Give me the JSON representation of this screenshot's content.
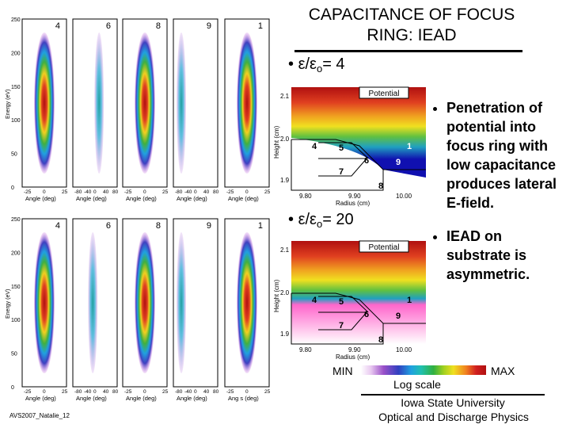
{
  "title": "CAPACITANCE OF FOCUS RING: IEAD",
  "case1": {
    "label": "ε/ε",
    "sub": "o",
    "value": "= 4"
  },
  "case2": {
    "label": "ε/ε",
    "sub": "o",
    "value": "= 20"
  },
  "bullets": [
    "Penetration of potential into focus ring with low capacitance produces lateral E-field.",
    "IEAD on substrate is asymmetric."
  ],
  "iead": {
    "ylabel": "Energy (eV)",
    "yticks": [
      "250",
      "200",
      "150",
      "100",
      "50",
      "0"
    ],
    "xlabel": "Angle (deg)",
    "xlabel_last": "Ang s (deg)",
    "row1_panels": [
      "4",
      "6",
      "8",
      "9",
      "1"
    ],
    "row2_panels": [
      "4",
      "6",
      "8",
      "9",
      "1"
    ],
    "xticks_narrow": [
      "-25",
      "0",
      "25"
    ],
    "xticks_wide": [
      "-80",
      "-40",
      "0",
      "40",
      "80"
    ]
  },
  "potential": {
    "title": "Potential",
    "ylabel": "Height (cm)",
    "xlabel": "Radius (cm)",
    "yticks": [
      "2.1",
      "2.0",
      "1.9"
    ],
    "xticks": [
      "9.80",
      "9.90",
      "10.00"
    ],
    "regions": [
      "4",
      "5",
      "6",
      "7",
      "8",
      "9",
      "1"
    ]
  },
  "legend": {
    "min": "MIN",
    "max": "MAX",
    "scale": "Log scale"
  },
  "footer": {
    "line1": "Iowa State University",
    "line2": "Optical and Discharge Physics"
  },
  "credit": "AVS2007_Natalie_12",
  "colors": {
    "title_rule": "#000000",
    "high": "#b01010",
    "low": "#ff66cc",
    "field_blue": "#1010b0"
  }
}
